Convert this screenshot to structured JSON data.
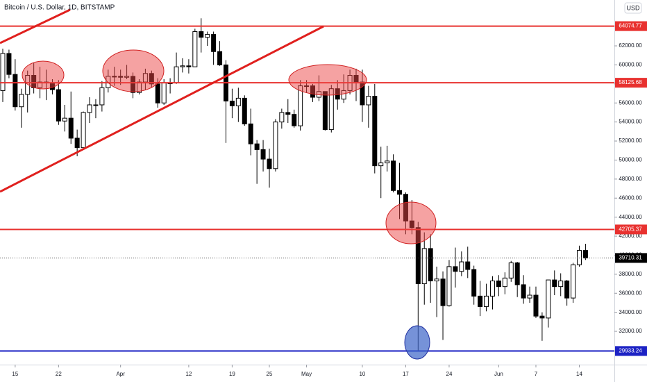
{
  "chart_data": {
    "type": "candlestick",
    "title": "Bitcoin / U.S. Dollar, 1D, BITSTAMP",
    "currency": "USD",
    "categories": [
      null,
      null,
      "15",
      null,
      null,
      null,
      null,
      null,
      null,
      "22",
      null,
      null,
      null,
      null,
      null,
      null,
      null,
      null,
      null,
      "Apr",
      null,
      null,
      null,
      null,
      null,
      null,
      null,
      null,
      null,
      null,
      "12",
      null,
      null,
      null,
      null,
      null,
      null,
      "19",
      null,
      null,
      null,
      null,
      null,
      "25",
      null,
      null,
      null,
      null,
      null,
      "May",
      null,
      null,
      null,
      null,
      null,
      null,
      null,
      null,
      "10",
      null,
      null,
      null,
      null,
      null,
      null,
      "17",
      null,
      null,
      null,
      null,
      null,
      null,
      "24",
      null,
      null,
      null,
      null,
      null,
      null,
      null,
      "Jun",
      null,
      null,
      null,
      null,
      null,
      "7",
      null,
      null,
      null,
      null,
      null,
      null,
      "14",
      null
    ],
    "open": [
      57300,
      61200,
      59000,
      55600,
      56900,
      58900,
      57600,
      58200,
      58100,
      57400,
      54100,
      54400,
      52300,
      51300,
      55000,
      55800,
      55800,
      57600,
      58800,
      58800,
      58700,
      58800,
      57100,
      58200,
      59100,
      58000,
      56000,
      58100,
      58100,
      59800,
      59900,
      59800,
      63500,
      62900,
      63200,
      61400,
      60000,
      56200,
      55700,
      56500,
      53800,
      51700,
      51100,
      50100,
      49100,
      54000,
      55000,
      54800,
      53600,
      57800,
      57800,
      56600,
      57200,
      53200,
      57500,
      56400,
      57300,
      58900,
      58200,
      55800,
      56700,
      49400,
      49700,
      49900,
      46800,
      46400,
      43600,
      42900,
      37000,
      40700,
      37300,
      37500,
      34700,
      38800,
      38300,
      39300,
      38500,
      35700,
      34600,
      35700,
      37300,
      36700,
      37600,
      39200,
      36900,
      35500,
      35800,
      33600,
      33400,
      37400,
      36700,
      37300,
      35500,
      39000,
      40500
    ],
    "high": [
      61700,
      61600,
      60600,
      57500,
      59400,
      60200,
      59800,
      59500,
      58500,
      58400,
      55800,
      57200,
      53200,
      55100,
      56600,
      56400,
      58300,
      59500,
      59800,
      59500,
      60000,
      59200,
      58500,
      59600,
      59400,
      58600,
      58500,
      58600,
      61300,
      60700,
      60600,
      63800,
      64900,
      63500,
      63500,
      62500,
      60500,
      57500,
      57600,
      56800,
      55400,
      52100,
      52100,
      51200,
      54300,
      55400,
      56400,
      55300,
      58400,
      58400,
      58000,
      58900,
      57200,
      57900,
      58400,
      59000,
      59500,
      59600,
      59500,
      57800,
      58000,
      51400,
      51500,
      50600,
      49700,
      46600,
      45800,
      43500,
      42400,
      42200,
      38800,
      38300,
      39500,
      40800,
      40400,
      40900,
      38900,
      37300,
      37000,
      37800,
      37900,
      38200,
      39400,
      39300,
      37900,
      36700,
      36700,
      34000,
      37400,
      38400,
      38100,
      37400,
      39200,
      41000,
      41200
    ],
    "low": [
      56100,
      58600,
      55200,
      53400,
      55000,
      57000,
      56500,
      56300,
      56900,
      53700,
      53000,
      51700,
      50400,
      51300,
      53900,
      54400,
      55100,
      57100,
      57800,
      57900,
      58500,
      56500,
      56900,
      57400,
      57600,
      55500,
      55800,
      57000,
      58000,
      59200,
      59100,
      59800,
      61300,
      62000,
      60000,
      59900,
      51800,
      54400,
      54000,
      53600,
      50500,
      47500,
      48800,
      47100,
      48800,
      53300,
      53900,
      53400,
      53100,
      57100,
      56100,
      56200,
      53100,
      52900,
      55300,
      56000,
      56900,
      56200,
      54000,
      53400,
      48600,
      46000,
      48800,
      46600,
      43800,
      42200,
      42200,
      30000,
      34800,
      35000,
      33500,
      31100,
      34600,
      36600,
      37800,
      37600,
      34800,
      33600,
      34100,
      34300,
      35700,
      35900,
      37200,
      35600,
      34900,
      35000,
      33400,
      31000,
      32400,
      35800,
      35700,
      34700,
      35000,
      38800,
      39500
    ],
    "close": [
      61200,
      59000,
      55600,
      56900,
      58900,
      57600,
      58200,
      58100,
      57400,
      54100,
      54400,
      52300,
      51300,
      55000,
      55800,
      55800,
      57600,
      58800,
      58800,
      58700,
      58800,
      57100,
      58200,
      59100,
      58000,
      56000,
      58100,
      58100,
      59800,
      59900,
      59800,
      63500,
      62900,
      63200,
      61400,
      60000,
      56200,
      55700,
      56500,
      53800,
      51700,
      51100,
      50100,
      49100,
      54000,
      55000,
      54800,
      53600,
      57800,
      57800,
      56600,
      57200,
      53200,
      57500,
      56400,
      57300,
      58900,
      58200,
      55800,
      56700,
      49400,
      49700,
      49900,
      46800,
      46400,
      43600,
      42900,
      37000,
      40700,
      37300,
      37500,
      34700,
      38800,
      38300,
      39300,
      38500,
      35700,
      34600,
      35700,
      37300,
      36700,
      37600,
      39200,
      36900,
      35500,
      35800,
      33600,
      33400,
      37400,
      36700,
      37300,
      35500,
      39000,
      40500,
      39710.31
    ],
    "ylim": [
      28500,
      66820
    ],
    "yticks": [
      {
        "value": 32000,
        "label": "32000.00"
      },
      {
        "value": 34000,
        "label": "34000.00"
      },
      {
        "value": 36000,
        "label": "36000.00"
      },
      {
        "value": 38000,
        "label": "38000.00"
      },
      {
        "value": 40000,
        "label": "40000.00"
      },
      {
        "value": 42000,
        "label": "42000.00"
      },
      {
        "value": 44000,
        "label": "44000.00"
      },
      {
        "value": 46000,
        "label": "46000.00"
      },
      {
        "value": 48000,
        "label": "48000.00"
      },
      {
        "value": 50000,
        "label": "50000.00"
      },
      {
        "value": 52000,
        "label": "52000.00"
      },
      {
        "value": 54000,
        "label": "54000.00"
      },
      {
        "value": 56000,
        "label": "56000.00"
      },
      {
        "value": 58000,
        "label": "58000.00"
      },
      {
        "value": 60000,
        "label": "60000.00"
      },
      {
        "value": 62000,
        "label": "62000.00"
      }
    ],
    "levels": [
      {
        "value": 64074.77,
        "color": "#e8312f"
      },
      {
        "value": 58125.68,
        "color": "#e8312f"
      },
      {
        "value": 42705.37,
        "color": "#e8312f"
      },
      {
        "value": 29933.24,
        "color": "#1c22c4"
      }
    ],
    "last_price": 39710.31
  }
}
